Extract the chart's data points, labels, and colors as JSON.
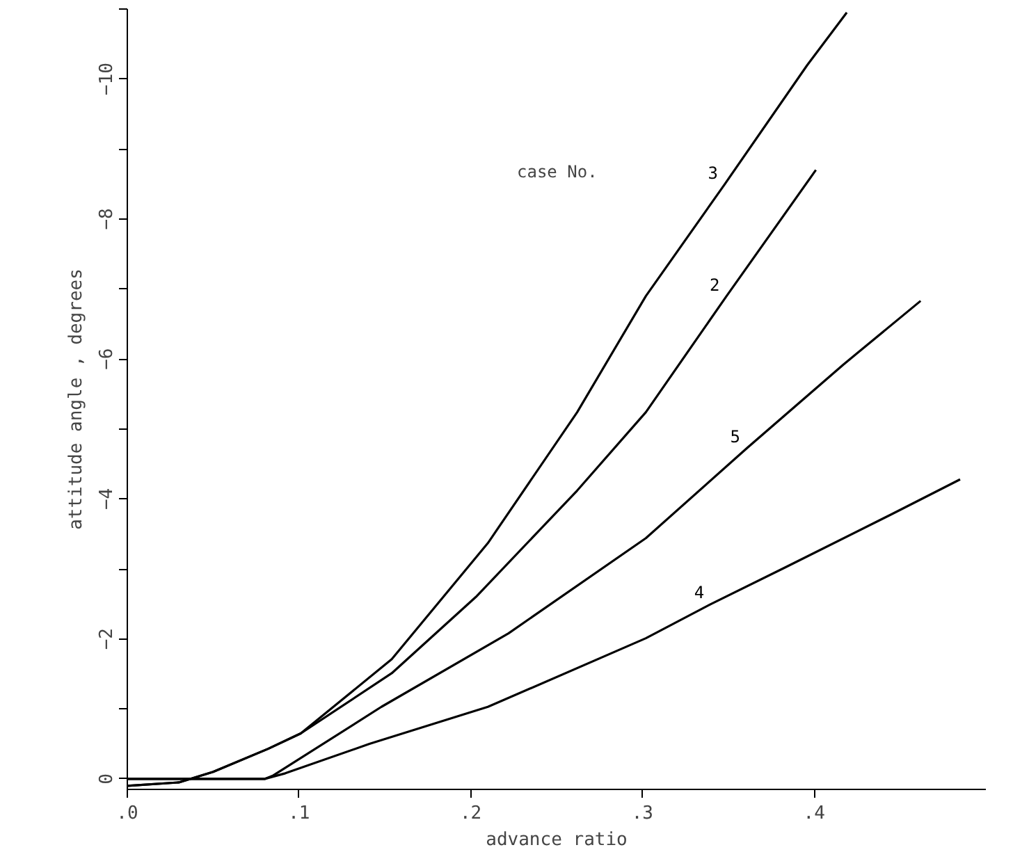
{
  "chart_data": {
    "type": "line",
    "xlabel": "advance ratio",
    "ylabel": "attitude angle , degrees",
    "xlim": [
      0,
      0.5
    ],
    "ylim": [
      0.15,
      -11
    ],
    "xticks": [
      {
        "value": 0,
        "label": ".0"
      },
      {
        "value": 0.1,
        "label": ".1"
      },
      {
        "value": 0.2,
        "label": ".2"
      },
      {
        "value": 0.3,
        "label": ".3"
      },
      {
        "value": 0.4,
        "label": ".4"
      }
    ],
    "yticks": [
      0,
      {
        "value": -1,
        "label": null
      },
      -2,
      {
        "value": -3,
        "label": null
      },
      -4,
      {
        "value": -5,
        "label": null
      },
      -6,
      {
        "value": -7,
        "label": null
      },
      -8,
      {
        "value": -9,
        "label": null
      },
      -10,
      {
        "value": -11,
        "label": null
      }
    ],
    "grid": false,
    "marker": "none",
    "line_style": "solid",
    "series": [
      {
        "color": "#000000",
        "x": [
          0,
          0.03,
          0.05,
          0.082,
          0.101,
          0.154,
          0.21,
          0.262,
          0.302,
          0.348,
          0.396,
          0.419
        ],
        "values": [
          0.1,
          0.05,
          -0.1,
          -0.43,
          -0.65,
          -1.71,
          -3.37,
          -5.24,
          -6.9,
          -8.5,
          -10.2,
          -10.95
        ]
      },
      {
        "color": "#000000",
        "x": [
          0,
          0.03,
          0.05,
          0.082,
          0.101,
          0.154,
          0.203,
          0.262,
          0.302,
          0.349,
          0.401
        ],
        "values": [
          0.1,
          0.05,
          -0.1,
          -0.43,
          -0.65,
          -1.51,
          -2.6,
          -4.12,
          -5.24,
          -6.9,
          -8.7
        ]
      },
      {
        "color": "#000000",
        "x": [
          0,
          0.08,
          0.085,
          0.148,
          0.222,
          0.302,
          0.361,
          0.417,
          0.462
        ],
        "values": [
          0,
          0,
          -0.05,
          -1.03,
          -2.08,
          -3.44,
          -4.73,
          -5.92,
          -6.83
        ]
      },
      {
        "color": "#000000",
        "x": [
          0,
          0.08,
          0.092,
          0.141,
          0.21,
          0.302,
          0.34,
          0.383,
          0.445,
          0.485
        ],
        "values": [
          0,
          0,
          -0.08,
          -0.5,
          -1.03,
          -2.01,
          -2.5,
          -3.02,
          -3.78,
          -4.28
        ]
      }
    ],
    "annotations": [
      "case  No.",
      {
        "text": "3",
        "x": 0.348,
        "y": -8.5
      },
      {
        "text": "2",
        "x": 0.349,
        "y": -6.9
      },
      {
        "text": "5",
        "x": 0.361,
        "y": -4.73
      },
      {
        "text": "4",
        "x": 0.34,
        "y": -2.5
      }
    ]
  }
}
